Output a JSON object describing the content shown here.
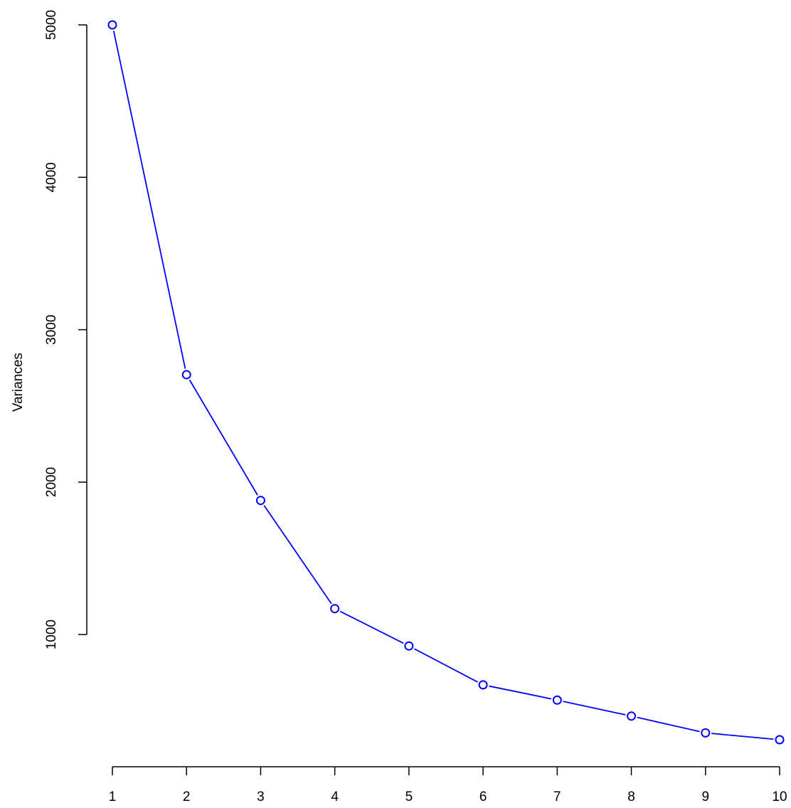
{
  "chart_data": {
    "type": "line",
    "title": "",
    "xlabel": "",
    "ylabel": "Variances",
    "x": [
      1,
      2,
      3,
      4,
      5,
      6,
      7,
      8,
      9,
      10
    ],
    "x_tick_labels": [
      "1",
      "2",
      "3",
      "4",
      "5",
      "6",
      "7",
      "8",
      "9",
      "10"
    ],
    "y_ticks": [
      1000,
      2000,
      3000,
      4000,
      5000
    ],
    "y_tick_labels": [
      "1000",
      "2000",
      "3000",
      "4000",
      "5000"
    ],
    "xlim": [
      1,
      10
    ],
    "ylim": [
      310,
      5000
    ],
    "grid": false,
    "series": [
      {
        "values": [
          5000,
          2705,
          1880,
          1170,
          925,
          670,
          570,
          465,
          355,
          310
        ],
        "color": "#0000ff",
        "marker": "open-circle"
      }
    ]
  }
}
